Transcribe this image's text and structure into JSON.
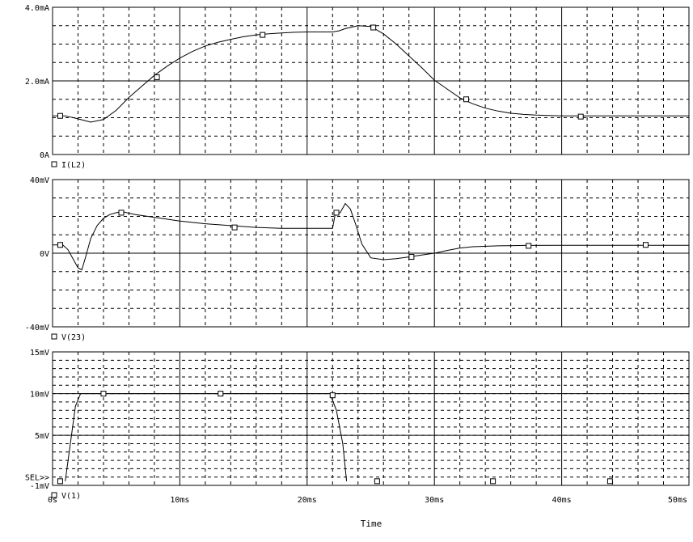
{
  "colors": {
    "background": "#ffffff",
    "trace": "#000000",
    "grid": "#000000"
  },
  "x_axis": {
    "title": "Time",
    "range_ms": [
      0,
      50
    ],
    "tick_labels": [
      "0s",
      "10ms",
      "20ms",
      "30ms",
      "40ms",
      "50ms"
    ],
    "tick_values_ms": [
      0,
      10,
      20,
      30,
      40,
      50
    ]
  },
  "sel_marker": "SEL>>",
  "chart_data": [
    {
      "type": "line",
      "trace": "I(L2)",
      "legend": "I(L2)",
      "y_tick_labels": [
        "4.0mA",
        "2.0mA",
        "0A"
      ],
      "y_tick_values": [
        4.0,
        2.0,
        0.0
      ],
      "ylim": [
        0,
        4.0
      ],
      "y_unit": "mA",
      "grid": true,
      "x_ms": [
        0,
        1,
        2,
        3,
        4,
        5,
        6,
        7,
        8,
        9,
        10,
        11,
        12,
        13,
        14,
        15,
        16,
        17,
        18,
        19,
        20,
        21,
        22,
        22.5,
        23,
        24,
        25,
        26,
        27,
        28,
        29,
        30,
        31,
        32,
        33,
        34,
        35,
        36,
        37,
        38,
        40,
        42,
        44,
        46,
        48,
        50
      ],
      "y": [
        1.05,
        1.05,
        0.97,
        0.88,
        0.95,
        1.2,
        1.55,
        1.85,
        2.15,
        2.4,
        2.62,
        2.8,
        2.95,
        3.05,
        3.13,
        3.2,
        3.25,
        3.28,
        3.3,
        3.32,
        3.33,
        3.33,
        3.33,
        3.36,
        3.42,
        3.5,
        3.48,
        3.28,
        3.0,
        2.68,
        2.36,
        2.02,
        1.78,
        1.54,
        1.38,
        1.26,
        1.18,
        1.12,
        1.09,
        1.07,
        1.05,
        1.05,
        1.05,
        1.05,
        1.05,
        1.05
      ],
      "markers_ms": [
        0.6,
        8.2,
        16.5,
        25.2,
        32.5,
        41.5
      ],
      "markers_y": [
        1.05,
        2.1,
        3.25,
        3.45,
        1.5,
        1.03
      ]
    },
    {
      "type": "line",
      "trace": "V(23)",
      "legend": "V(23)",
      "y_tick_labels": [
        "40mV",
        "0V",
        "-40mV"
      ],
      "y_tick_values": [
        40,
        0,
        -40
      ],
      "ylim": [
        -40,
        40
      ],
      "y_unit": "mV",
      "grid": true,
      "x_ms": [
        0,
        0.8,
        1.2,
        1.6,
        2.0,
        2.3,
        2.6,
        3.0,
        3.5,
        4.0,
        4.5,
        5.0,
        5.5,
        6.5,
        8,
        10,
        12,
        14,
        16,
        18,
        20,
        21.5,
        22.0,
        22.2,
        22.6,
        23.0,
        23.4,
        23.8,
        24.3,
        25.0,
        26.0,
        27.0,
        28.0,
        29.0,
        30.0,
        31,
        32,
        33,
        35,
        37,
        40,
        44,
        48,
        50
      ],
      "y": [
        4.5,
        4.5,
        2,
        -3,
        -8,
        -9,
        -2,
        8,
        15,
        19,
        21,
        22,
        22.5,
        21,
        19.5,
        17.5,
        16,
        15,
        14,
        13.5,
        13.5,
        13.5,
        13.5,
        21,
        22,
        27,
        24,
        16,
        5,
        -2.5,
        -3.5,
        -3,
        -2,
        -1,
        0,
        1.5,
        2.8,
        3.5,
        4,
        4.2,
        4.3,
        4.3,
        4.3,
        4.3
      ],
      "markers_ms": [
        0.6,
        5.4,
        14.3,
        22.3,
        28.2,
        37.4,
        46.6
      ],
      "markers_y": [
        4.5,
        22,
        14,
        22,
        -2,
        4,
        4.5
      ]
    },
    {
      "type": "line",
      "trace": "V(1)",
      "legend": "V(1)",
      "y_tick_labels": [
        "15mV",
        "10mV",
        "5mV",
        "-1mV"
      ],
      "y_tick_values": [
        15,
        10,
        5,
        -1
      ],
      "ylim": [
        -1,
        15
      ],
      "y_unit": "mV",
      "grid": true,
      "x_ms": [
        1.0,
        1.8,
        2.2,
        21.8,
        22.3,
        22.8,
        23.1
      ],
      "y": [
        -0.5,
        8.5,
        10,
        10,
        8,
        4,
        -0.5
      ],
      "markers_ms": [
        0.6,
        4.0,
        13.2,
        22.0,
        25.5,
        34.6,
        43.8
      ],
      "markers_y": [
        -0.5,
        10,
        10,
        9.8,
        -0.5,
        -0.5,
        -0.5
      ]
    }
  ]
}
